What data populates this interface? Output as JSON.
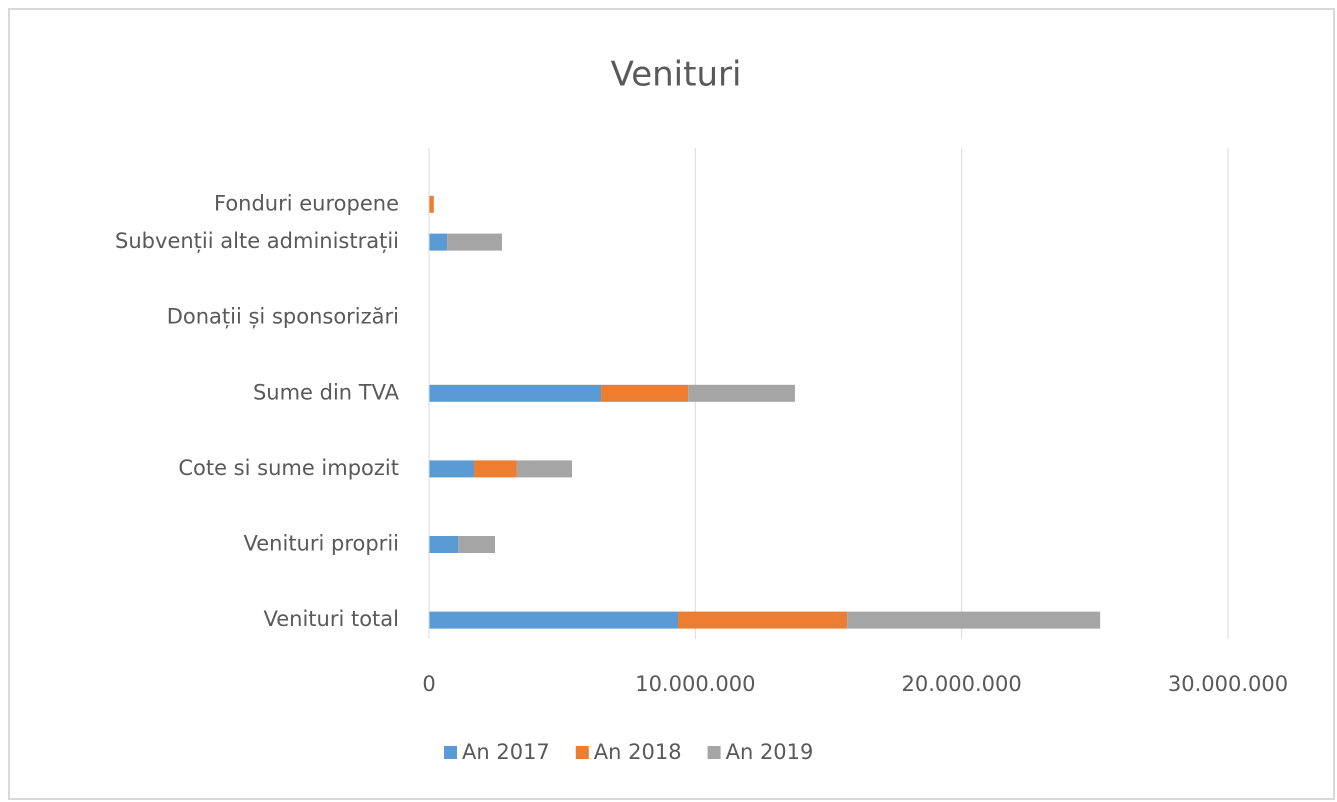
{
  "chart_data": {
    "type": "stacked_bar_horizontal",
    "title": "Venituri",
    "categories": [
      "Venituri total",
      null,
      "Venituri proprii",
      null,
      "Cote si sume impozit",
      null,
      "Sume din TVA",
      null,
      "Donații și sponsorizări",
      null,
      "Subvenții alte administrații",
      "Fonduri europene"
    ],
    "series": [
      {
        "name": "An 2017",
        "color": "#5b9bd5",
        "values": [
          9350000,
          null,
          1090000,
          null,
          1690000,
          null,
          6460000,
          null,
          0,
          null,
          680000,
          0
        ]
      },
      {
        "name": "An 2018",
        "color": "#ed7d31",
        "values": [
          6350000,
          null,
          0,
          null,
          1610000,
          null,
          3270000,
          null,
          0,
          null,
          0,
          180000
        ]
      },
      {
        "name": "An 2019",
        "color": "#a5a5a5",
        "values": [
          9500000,
          null,
          1390000,
          null,
          2070000,
          null,
          4010000,
          null,
          0,
          null,
          2060000,
          0
        ]
      }
    ],
    "xlim": [
      0,
      30000000
    ],
    "xticks": [
      0,
      {
        "value": 10000000,
        "label": "10.000.000"
      },
      {
        "value": 20000000,
        "label": "20.000.000"
      },
      {
        "value": 30000000,
        "label": "30.000.000"
      }
    ],
    "grid": true,
    "legend": "bottom"
  }
}
